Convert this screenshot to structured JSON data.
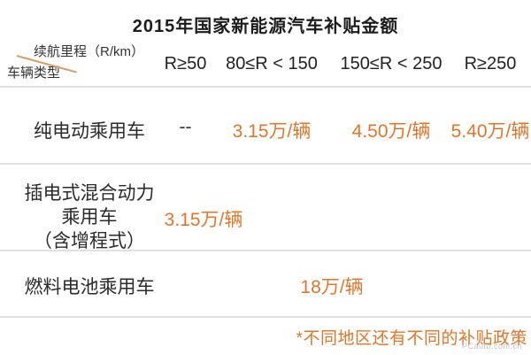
{
  "title": "2015年国家新能源汽车补贴金额",
  "table": {
    "corner": {
      "top_label": "续航里程（R/km）",
      "bottom_label": "车辆类型"
    },
    "columns": [
      "R≥50",
      "80≤R < 150",
      "150≤R < 250",
      "R≥250"
    ],
    "rows": [
      {
        "label": "纯电动乘用车",
        "values": [
          "--",
          "3.15万/辆",
          "4.50万/辆",
          "5.40万/辆"
        ]
      },
      {
        "label_lines": [
          "插电式混合动力",
          "乘用车",
          "（含增程式）"
        ],
        "value": "3.15万/辆"
      },
      {
        "label": "燃料电池乘用车",
        "value": "18万/辆"
      }
    ]
  },
  "footnote": "*不同地区还有不同的补贴政策",
  "watermark": "PCauto.com.cn",
  "colors": {
    "accent_orange": "#e0762c",
    "divider_gray": "#e1e1e1",
    "diagonal_line": "#d89c64",
    "text_black": "#222222",
    "watermark_gray": "#c4c4c4"
  },
  "chart_data": {
    "type": "table",
    "title": "2015年国家新能源汽车补贴金额",
    "corner_header": "车辆类型 / 续航里程（R/km）",
    "columns": [
      "R≥50",
      "80≤R < 150",
      "150≤R < 250",
      "R≥250"
    ],
    "rows": [
      {
        "vehicle_type": "纯电动乘用车",
        "values": [
          "--",
          "3.15万/辆",
          "4.50万/辆",
          "5.40万/辆"
        ]
      },
      {
        "vehicle_type": "插电式混合动力乘用车（含增程式）",
        "values": [
          "3.15万/辆",
          "",
          "",
          ""
        ]
      },
      {
        "vehicle_type": "燃料电池乘用车",
        "values": [
          "18万/辆",
          "",
          "",
          ""
        ]
      }
    ],
    "footnote": "*不同地区还有不同的补贴政策",
    "layout": "subsidy amounts shown in orange; grid off; thin gray row dividers"
  }
}
